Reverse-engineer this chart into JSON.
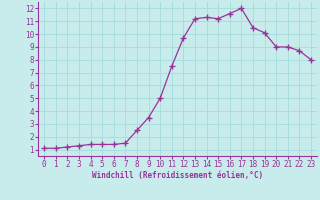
{
  "x": [
    0,
    1,
    2,
    3,
    4,
    5,
    6,
    7,
    8,
    9,
    10,
    11,
    12,
    13,
    14,
    15,
    16,
    17,
    18,
    19,
    20,
    21,
    22,
    23
  ],
  "y": [
    1.1,
    1.1,
    1.2,
    1.3,
    1.4,
    1.4,
    1.4,
    1.5,
    2.5,
    3.5,
    5.0,
    7.5,
    9.7,
    11.2,
    11.3,
    11.2,
    11.6,
    12.0,
    10.5,
    10.1,
    9.0,
    9.0,
    8.7,
    8.0
  ],
  "line_color": "#993399",
  "marker": "s",
  "marker_size": 2.0,
  "bg_color": "#c8ecec",
  "grid_color": "#aadddd",
  "xlabel": "Windchill (Refroidissement éolien,°C)",
  "xlabel_color": "#993399",
  "tick_color": "#993399",
  "xlim": [
    -0.5,
    23.5
  ],
  "ylim": [
    0.5,
    12.5
  ],
  "xticks": [
    0,
    1,
    2,
    3,
    4,
    5,
    6,
    7,
    8,
    9,
    10,
    11,
    12,
    13,
    14,
    15,
    16,
    17,
    18,
    19,
    20,
    21,
    22,
    23
  ],
  "yticks": [
    1,
    2,
    3,
    4,
    5,
    6,
    7,
    8,
    9,
    10,
    11,
    12
  ],
  "tick_fontsize": 5.5,
  "xlabel_fontsize": 5.5
}
